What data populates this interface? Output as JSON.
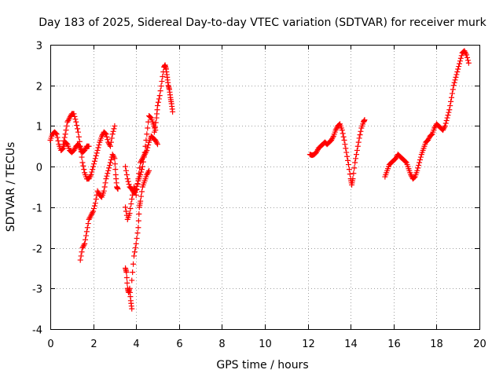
{
  "chart_data": {
    "type": "scatter",
    "title": "Day 183 of 2025, Sidereal Day-to-day VTEC variation (SDTVAR) for receiver murk",
    "xlabel": "GPS time / hours",
    "ylabel": "SDTVAR / TECUs",
    "xlim": [
      0,
      20
    ],
    "ylim": [
      -4,
      3
    ],
    "x_ticks": [
      "0",
      "2",
      "4",
      "6",
      "8",
      "10",
      "12",
      "14",
      "16",
      "18",
      "20"
    ],
    "y_ticks": [
      "-4",
      "-3",
      "-2",
      "-1",
      "0",
      "1",
      "2",
      "3"
    ],
    "grid": true,
    "marker": "+",
    "color": "#ff0000",
    "series": [
      {
        "name": "SDTVAR",
        "segments": [
          [
            [
              0.0,
              0.65
            ],
            [
              0.1,
              0.8
            ],
            [
              0.2,
              0.85
            ],
            [
              0.3,
              0.8
            ],
            [
              0.4,
              0.55
            ],
            [
              0.5,
              0.4
            ],
            [
              0.6,
              0.45
            ],
            [
              0.7,
              0.6
            ],
            [
              0.8,
              0.55
            ],
            [
              0.9,
              0.4
            ],
            [
              1.0,
              0.35
            ],
            [
              1.1,
              0.4
            ],
            [
              1.2,
              0.5
            ],
            [
              1.3,
              0.55
            ],
            [
              1.4,
              0.45
            ],
            [
              1.5,
              0.35
            ],
            [
              1.6,
              0.4
            ],
            [
              1.7,
              0.5
            ],
            [
              1.8,
              0.5
            ]
          ],
          [
            [
              0.6,
              0.55
            ],
            [
              0.7,
              0.8
            ],
            [
              0.8,
              1.1
            ],
            [
              0.9,
              1.2
            ],
            [
              1.0,
              1.3
            ],
            [
              1.1,
              1.3
            ],
            [
              1.2,
              1.1
            ],
            [
              1.3,
              0.85
            ],
            [
              1.4,
              0.5
            ],
            [
              1.5,
              0.1
            ],
            [
              1.6,
              -0.15
            ],
            [
              1.7,
              -0.3
            ],
            [
              1.8,
              -0.3
            ],
            [
              1.9,
              -0.2
            ],
            [
              2.0,
              0.0
            ],
            [
              2.1,
              0.2
            ],
            [
              2.2,
              0.4
            ],
            [
              2.3,
              0.6
            ],
            [
              2.4,
              0.75
            ],
            [
              2.5,
              0.85
            ],
            [
              2.6,
              0.8
            ],
            [
              2.7,
              0.6
            ],
            [
              2.8,
              0.5
            ],
            [
              2.9,
              0.8
            ],
            [
              3.0,
              1.0
            ]
          ],
          [
            [
              1.4,
              -2.3
            ],
            [
              1.5,
              -2.0
            ],
            [
              1.6,
              -1.9
            ],
            [
              1.7,
              -1.6
            ],
            [
              1.8,
              -1.3
            ],
            [
              1.9,
              -1.2
            ],
            [
              2.0,
              -1.1
            ],
            [
              2.1,
              -0.9
            ],
            [
              2.2,
              -0.6
            ],
            [
              2.3,
              -0.7
            ],
            [
              2.4,
              -0.75
            ],
            [
              2.5,
              -0.6
            ],
            [
              2.6,
              -0.3
            ],
            [
              2.7,
              -0.1
            ],
            [
              2.8,
              0.1
            ],
            [
              2.9,
              0.3
            ],
            [
              3.0,
              0.2
            ],
            [
              3.05,
              -0.2
            ],
            [
              3.1,
              -0.5
            ],
            [
              3.15,
              -0.55
            ]
          ],
          [
            [
              3.5,
              -2.5
            ],
            [
              3.55,
              -2.6
            ],
            [
              3.6,
              -3.0
            ],
            [
              3.65,
              -3.1
            ],
            [
              3.7,
              -3.0
            ],
            [
              3.75,
              -3.3
            ],
            [
              3.8,
              -3.5
            ]
          ],
          [
            [
              3.5,
              -1.0
            ],
            [
              3.6,
              -1.3
            ],
            [
              3.7,
              -1.15
            ],
            [
              3.8,
              -0.8
            ],
            [
              3.9,
              -0.5
            ],
            [
              4.0,
              -0.7
            ],
            [
              4.1,
              -0.3
            ],
            [
              4.2,
              0.1
            ],
            [
              4.3,
              0.2
            ],
            [
              4.4,
              0.3
            ],
            [
              4.5,
              0.4
            ],
            [
              4.6,
              0.6
            ],
            [
              4.7,
              0.75
            ],
            [
              4.8,
              0.7
            ],
            [
              4.9,
              0.65
            ],
            [
              5.0,
              0.55
            ]
          ],
          [
            [
              3.8,
              -2.8
            ],
            [
              3.9,
              -2.2
            ],
            [
              4.0,
              -1.9
            ],
            [
              4.1,
              -1.5
            ],
            [
              4.15,
              -1.0
            ],
            [
              4.2,
              -0.85
            ],
            [
              4.3,
              -0.5
            ],
            [
              4.4,
              -0.35
            ],
            [
              4.5,
              -0.2
            ],
            [
              4.6,
              -0.1
            ]
          ],
          [
            [
              3.5,
              0.0
            ],
            [
              3.6,
              -0.3
            ],
            [
              3.7,
              -0.5
            ],
            [
              3.8,
              -0.55
            ],
            [
              3.9,
              -0.65
            ],
            [
              4.0,
              -0.55
            ],
            [
              4.1,
              -0.35
            ],
            [
              4.2,
              -0.2
            ],
            [
              4.3,
              0.0
            ],
            [
              4.4,
              0.35
            ],
            [
              4.5,
              0.8
            ],
            [
              4.6,
              1.25
            ],
            [
              4.7,
              1.2
            ],
            [
              4.8,
              1.05
            ],
            [
              4.9,
              0.9
            ]
          ],
          [
            [
              4.85,
              0.85
            ],
            [
              4.95,
              1.2
            ],
            [
              5.0,
              1.5
            ],
            [
              5.1,
              1.75
            ],
            [
              5.2,
              2.1
            ],
            [
              5.3,
              2.45
            ],
            [
              5.35,
              2.5
            ],
            [
              5.4,
              2.4
            ],
            [
              5.45,
              2.2
            ],
            [
              5.5,
              2.0
            ],
            [
              5.55,
              1.9
            ],
            [
              5.6,
              1.7
            ],
            [
              5.65,
              1.55
            ],
            [
              5.7,
              1.35
            ]
          ],
          [
            [
              12.1,
              0.3
            ],
            [
              12.2,
              0.28
            ],
            [
              12.3,
              0.3
            ],
            [
              12.4,
              0.35
            ],
            [
              12.5,
              0.45
            ],
            [
              12.6,
              0.5
            ],
            [
              12.7,
              0.55
            ],
            [
              12.8,
              0.6
            ],
            [
              12.9,
              0.55
            ],
            [
              13.0,
              0.6
            ],
            [
              13.1,
              0.65
            ],
            [
              13.2,
              0.75
            ],
            [
              13.3,
              0.9
            ],
            [
              13.4,
              1.0
            ],
            [
              13.5,
              1.05
            ],
            [
              13.6,
              0.9
            ],
            [
              13.7,
              0.65
            ],
            [
              13.8,
              0.35
            ],
            [
              13.9,
              0.05
            ],
            [
              14.0,
              -0.3
            ],
            [
              14.05,
              -0.45
            ],
            [
              14.1,
              -0.3
            ],
            [
              14.2,
              0.1
            ],
            [
              14.3,
              0.4
            ],
            [
              14.4,
              0.7
            ],
            [
              14.5,
              0.95
            ],
            [
              14.6,
              1.1
            ],
            [
              14.65,
              1.15
            ]
          ],
          [
            [
              15.6,
              -0.25
            ],
            [
              15.7,
              -0.1
            ],
            [
              15.8,
              0.05
            ],
            [
              15.9,
              0.1
            ],
            [
              16.0,
              0.15
            ],
            [
              16.1,
              0.2
            ],
            [
              16.2,
              0.3
            ],
            [
              16.3,
              0.25
            ],
            [
              16.4,
              0.2
            ],
            [
              16.5,
              0.15
            ],
            [
              16.6,
              0.1
            ],
            [
              16.7,
              -0.05
            ],
            [
              16.8,
              -0.2
            ],
            [
              16.9,
              -0.3
            ],
            [
              17.0,
              -0.25
            ],
            [
              17.1,
              -0.1
            ],
            [
              17.2,
              0.1
            ],
            [
              17.3,
              0.3
            ],
            [
              17.4,
              0.45
            ],
            [
              17.5,
              0.6
            ],
            [
              17.6,
              0.65
            ],
            [
              17.7,
              0.75
            ],
            [
              17.8,
              0.8
            ],
            [
              17.9,
              0.95
            ],
            [
              18.0,
              1.05
            ],
            [
              18.1,
              1.0
            ],
            [
              18.2,
              0.95
            ],
            [
              18.3,
              0.9
            ],
            [
              18.4,
              1.0
            ],
            [
              18.5,
              1.2
            ],
            [
              18.6,
              1.4
            ],
            [
              18.7,
              1.7
            ],
            [
              18.8,
              2.0
            ],
            [
              18.9,
              2.2
            ],
            [
              19.0,
              2.4
            ],
            [
              19.1,
              2.6
            ],
            [
              19.2,
              2.8
            ],
            [
              19.3,
              2.85
            ],
            [
              19.4,
              2.75
            ],
            [
              19.5,
              2.55
            ]
          ]
        ]
      }
    ]
  }
}
